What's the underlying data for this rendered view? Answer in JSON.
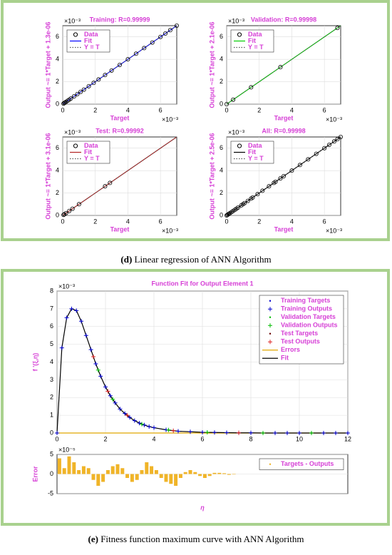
{
  "captions": [
    {
      "label": "(d)",
      "text": " Linear regression of ANN Algorithm"
    },
    {
      "label": "(e)",
      "text": " Fitness function maximum curve with ANN Algorithm"
    }
  ],
  "chart_data": [
    {
      "type": "scatter",
      "title": "Training: R=0.99999",
      "xlabel": "Target",
      "ylabel": "Output ~= 1*Target + 1.3e-06",
      "x_multiplier": "×10⁻³",
      "y_multiplier": "×10⁻³",
      "xlim": [
        0,
        7
      ],
      "ylim": [
        0,
        7
      ],
      "xticks": [
        0,
        2,
        4,
        6
      ],
      "yticks": [
        0,
        2,
        4,
        6
      ],
      "grid": true,
      "legend": "upper left",
      "series": [
        {
          "name": "Data",
          "color": "#000000",
          "marker": "o",
          "x": [
            0.05,
            0.1,
            0.15,
            0.2,
            0.3,
            0.4,
            0.5,
            0.7,
            0.9,
            1.1,
            1.3,
            1.6,
            1.9,
            2.2,
            2.6,
            3.0,
            3.5,
            4.0,
            4.5,
            5.0,
            5.5,
            6.0,
            6.3,
            6.6,
            7.0
          ],
          "values": [
            0.05,
            0.1,
            0.15,
            0.2,
            0.3,
            0.4,
            0.5,
            0.7,
            0.9,
            1.1,
            1.3,
            1.6,
            1.9,
            2.2,
            2.6,
            3.0,
            3.5,
            4.0,
            4.5,
            5.0,
            5.5,
            6.0,
            6.3,
            6.6,
            7.0
          ]
        },
        {
          "name": "Fit",
          "color": "#0000ff",
          "line": "solid",
          "x": [
            0,
            7
          ],
          "values": [
            0,
            7
          ]
        },
        {
          "name": "Y = T",
          "color": "#555555",
          "line": "dotted",
          "x": [
            0,
            7
          ],
          "values": [
            0,
            7
          ]
        }
      ]
    },
    {
      "type": "scatter",
      "title": "Validation: R=0.99998",
      "xlabel": "Target",
      "ylabel": "Output ~= 1*Target + 2.1e-06",
      "x_multiplier": "×10⁻³",
      "y_multiplier": "×10⁻³",
      "xlim": [
        0,
        7
      ],
      "ylim": [
        0,
        7
      ],
      "xticks": [
        0,
        2,
        4,
        6
      ],
      "yticks": [
        0,
        2,
        4,
        6
      ],
      "grid": true,
      "legend": "upper left",
      "series": [
        {
          "name": "Data",
          "color": "#000000",
          "marker": "o",
          "x": [
            0,
            0.4,
            1.5,
            3.3,
            6.8
          ],
          "values": [
            0,
            0.4,
            1.5,
            3.3,
            6.8
          ]
        },
        {
          "name": "Fit",
          "color": "#00cc00",
          "line": "solid",
          "x": [
            0,
            7
          ],
          "values": [
            0,
            7
          ]
        },
        {
          "name": "Y = T",
          "color": "#555555",
          "line": "dotted",
          "x": [
            0,
            7
          ],
          "values": [
            0,
            7
          ]
        }
      ]
    },
    {
      "type": "scatter",
      "title": "Test: R=0.99992",
      "xlabel": "Target",
      "ylabel": "Output ~= 1*Target + 3.1e-06",
      "x_multiplier": "×10⁻³",
      "y_multiplier": "×10⁻³",
      "xlim": [
        0,
        7
      ],
      "ylim": [
        0,
        7
      ],
      "xticks": [
        0,
        2,
        4,
        6
      ],
      "yticks": [
        0,
        2,
        4,
        6
      ],
      "grid": true,
      "legend": "upper left",
      "series": [
        {
          "name": "Data",
          "color": "#000000",
          "marker": "o",
          "x": [
            0.05,
            0.1,
            0.2,
            0.4,
            0.6,
            1.0,
            2.6,
            2.9
          ],
          "values": [
            0.05,
            0.1,
            0.2,
            0.4,
            0.6,
            1.0,
            2.6,
            2.9
          ]
        },
        {
          "name": "Fit",
          "color": "#b22222",
          "line": "solid",
          "x": [
            0,
            7
          ],
          "values": [
            0,
            7
          ]
        },
        {
          "name": "Y = T",
          "color": "#555555",
          "line": "dotted",
          "x": [
            0,
            7
          ],
          "values": [
            0,
            7
          ]
        }
      ]
    },
    {
      "type": "scatter",
      "title": "All: R=0.99998",
      "xlabel": "Target",
      "ylabel": "Output ~= 1*Target + 2.5e-06",
      "x_multiplier": "×10⁻³",
      "y_multiplier": "×10⁻³",
      "xlim": [
        0,
        7
      ],
      "ylim": [
        0,
        7
      ],
      "xticks": [
        0,
        2,
        4,
        6
      ],
      "yticks": [
        0,
        2,
        4,
        6
      ],
      "grid": true,
      "legend": "upper left",
      "series": [
        {
          "name": "Data",
          "color": "#000000",
          "marker": "o",
          "x": [
            0,
            0.05,
            0.1,
            0.15,
            0.2,
            0.3,
            0.4,
            0.5,
            0.6,
            0.7,
            0.9,
            1.0,
            1.1,
            1.3,
            1.5,
            1.6,
            1.9,
            2.2,
            2.6,
            2.9,
            3.0,
            3.3,
            3.5,
            4.0,
            4.5,
            5.0,
            5.5,
            6.0,
            6.3,
            6.6,
            6.8,
            7.0
          ],
          "values": [
            0,
            0.05,
            0.1,
            0.15,
            0.2,
            0.3,
            0.4,
            0.5,
            0.6,
            0.7,
            0.9,
            1.0,
            1.1,
            1.3,
            1.5,
            1.6,
            1.9,
            2.2,
            2.6,
            2.9,
            3.0,
            3.3,
            3.5,
            4.0,
            4.5,
            5.0,
            5.5,
            6.0,
            6.3,
            6.6,
            6.8,
            7.0
          ]
        },
        {
          "name": "Fit",
          "color": "#000000",
          "line": "solid",
          "x": [
            0,
            7
          ],
          "values": [
            0,
            7
          ]
        },
        {
          "name": "Y = T",
          "color": "#555555",
          "line": "dotted",
          "x": [
            0,
            7
          ],
          "values": [
            0,
            7
          ]
        }
      ]
    },
    {
      "type": "line",
      "title": "Function Fit for Output Element 1",
      "ylabel": "f '(ξ,η)",
      "y_multiplier": "×10⁻³",
      "xlim": [
        0,
        12
      ],
      "ylim": [
        0,
        8
      ],
      "xticks": [
        0,
        2,
        4,
        6,
        8,
        10,
        12
      ],
      "yticks": [
        0,
        1,
        2,
        3,
        4,
        5,
        6,
        7,
        8
      ],
      "grid": true,
      "legend": "upper right",
      "series": [
        {
          "name": "Training Targets",
          "color": "#0000cc",
          "marker": ".",
          "x": [
            0,
            0.2,
            0.4,
            0.6,
            0.8,
            1.0,
            1.2,
            1.4,
            1.6,
            1.8,
            2.0,
            2.2,
            2.4,
            2.6,
            2.8,
            3.0,
            3.2,
            3.4,
            3.6,
            3.8,
            4.0,
            4.5,
            5.0,
            5.5,
            6.0,
            6.5,
            7.0,
            7.5,
            8.0,
            8.5,
            9.0,
            9.5,
            10.0,
            10.5,
            11.0,
            11.5,
            12.0
          ],
          "values": [
            0,
            4.8,
            6.5,
            7.0,
            6.9,
            6.3,
            5.5,
            4.7,
            3.9,
            3.2,
            2.6,
            2.1,
            1.7,
            1.35,
            1.1,
            0.88,
            0.7,
            0.56,
            0.45,
            0.36,
            0.3,
            0.18,
            0.1,
            0.07,
            0.04,
            0.03,
            0.02,
            0.01,
            0.01,
            0,
            0,
            0,
            0,
            0,
            0,
            0,
            0
          ]
        },
        {
          "name": "Training Outputs",
          "color": "#0000cc",
          "marker": "+",
          "x": [
            0,
            0.2,
            0.4,
            0.6,
            0.8,
            1.0,
            1.2,
            1.4,
            1.6,
            1.8,
            2.0,
            2.2,
            2.4,
            2.6,
            2.8,
            3.0,
            3.2,
            3.4,
            3.6,
            3.8,
            4.0,
            4.5,
            5.0,
            5.5,
            6.0,
            6.5,
            7.0,
            7.5,
            8.0,
            8.5,
            9.0,
            9.5,
            10.0,
            10.5,
            11.0,
            11.5,
            12.0
          ],
          "values": [
            0,
            4.8,
            6.5,
            7.0,
            6.9,
            6.3,
            5.5,
            4.7,
            3.9,
            3.2,
            2.6,
            2.1,
            1.7,
            1.35,
            1.1,
            0.88,
            0.7,
            0.56,
            0.45,
            0.36,
            0.3,
            0.18,
            0.1,
            0.07,
            0.04,
            0.03,
            0.02,
            0.01,
            0.01,
            0,
            0,
            0,
            0,
            0,
            0,
            0,
            0
          ]
        },
        {
          "name": "Validation Targets",
          "color": "#00bb00",
          "marker": ".",
          "x": [
            1.7,
            2.3,
            3.5,
            4.6,
            6.2,
            8.5,
            10.5
          ],
          "values": [
            3.55,
            1.9,
            0.5,
            0.17,
            0.04,
            0,
            0
          ]
        },
        {
          "name": "Validation Outputs",
          "color": "#00bb00",
          "marker": "+",
          "x": [
            1.7,
            2.3,
            3.5,
            4.6,
            6.2,
            8.5,
            10.5
          ],
          "values": [
            3.55,
            1.9,
            0.5,
            0.17,
            0.04,
            0,
            0
          ]
        },
        {
          "name": "Test Targets",
          "color": "#660000",
          "marker": ".",
          "x": [
            1.5,
            2.1,
            2.9,
            4.8,
            7.5
          ],
          "values": [
            4.3,
            2.35,
            1.0,
            0.13,
            0.01
          ]
        },
        {
          "name": "Test Outputs",
          "color": "#dd2222",
          "marker": "+",
          "x": [
            1.5,
            2.1,
            2.9,
            4.8,
            7.5
          ],
          "values": [
            4.3,
            2.35,
            1.0,
            0.13,
            0.01
          ]
        },
        {
          "name": "Errors",
          "color": "#e0a800",
          "line": "solid",
          "x": [
            0,
            12
          ],
          "values": [
            0,
            0
          ]
        },
        {
          "name": "Fit",
          "color": "#000000",
          "line": "solid",
          "x": [
            0,
            0.2,
            0.4,
            0.6,
            0.8,
            1.0,
            1.2,
            1.4,
            1.6,
            1.8,
            2.0,
            2.2,
            2.4,
            2.6,
            2.8,
            3.0,
            3.2,
            3.4,
            3.6,
            3.8,
            4.0,
            4.5,
            5.0,
            5.5,
            6.0,
            6.5,
            7.0,
            7.5,
            8.0,
            8.5,
            9.0,
            9.5,
            10.0,
            10.5,
            11.0,
            11.5,
            12.0
          ],
          "values": [
            0,
            4.8,
            6.5,
            7.0,
            6.9,
            6.3,
            5.5,
            4.7,
            3.9,
            3.2,
            2.6,
            2.1,
            1.7,
            1.35,
            1.1,
            0.88,
            0.7,
            0.56,
            0.45,
            0.36,
            0.3,
            0.18,
            0.1,
            0.07,
            0.04,
            0.03,
            0.02,
            0.01,
            0.01,
            0,
            0,
            0,
            0,
            0,
            0,
            0,
            0
          ]
        }
      ]
    },
    {
      "type": "bar",
      "xlabel": "η",
      "ylabel": "Error",
      "y_multiplier": "×10⁻⁵",
      "xlim": [
        0,
        12
      ],
      "ylim": [
        -5,
        5
      ],
      "yticks": [
        -5,
        0,
        5
      ],
      "grid": true,
      "legend": "upper right",
      "series": [
        {
          "name": "Targets - Outputs",
          "color": "#f0b428",
          "x": [
            0.1,
            0.3,
            0.5,
            0.7,
            0.9,
            1.1,
            1.3,
            1.5,
            1.7,
            1.9,
            2.1,
            2.3,
            2.5,
            2.7,
            2.9,
            3.1,
            3.3,
            3.5,
            3.7,
            3.9,
            4.1,
            4.3,
            4.5,
            4.7,
            4.9,
            5.1,
            5.3,
            5.5,
            5.7,
            5.9,
            6.1,
            6.3,
            6.5,
            6.7,
            6.9,
            7.1,
            7.3,
            7.5,
            7.7,
            7.9
          ],
          "values": [
            4,
            1.5,
            4.5,
            3,
            1,
            2,
            1.5,
            -1.5,
            -3,
            -2,
            1,
            2,
            2.5,
            1.5,
            -1,
            -2,
            -1.5,
            1,
            3,
            2,
            1,
            -1,
            -2,
            -2.5,
            -3,
            -1,
            0.5,
            1,
            0.5,
            -0.5,
            -1,
            -0.5,
            0.3,
            0.3,
            0.2,
            -0.2,
            -0.1,
            0,
            0,
            0
          ]
        }
      ]
    }
  ]
}
